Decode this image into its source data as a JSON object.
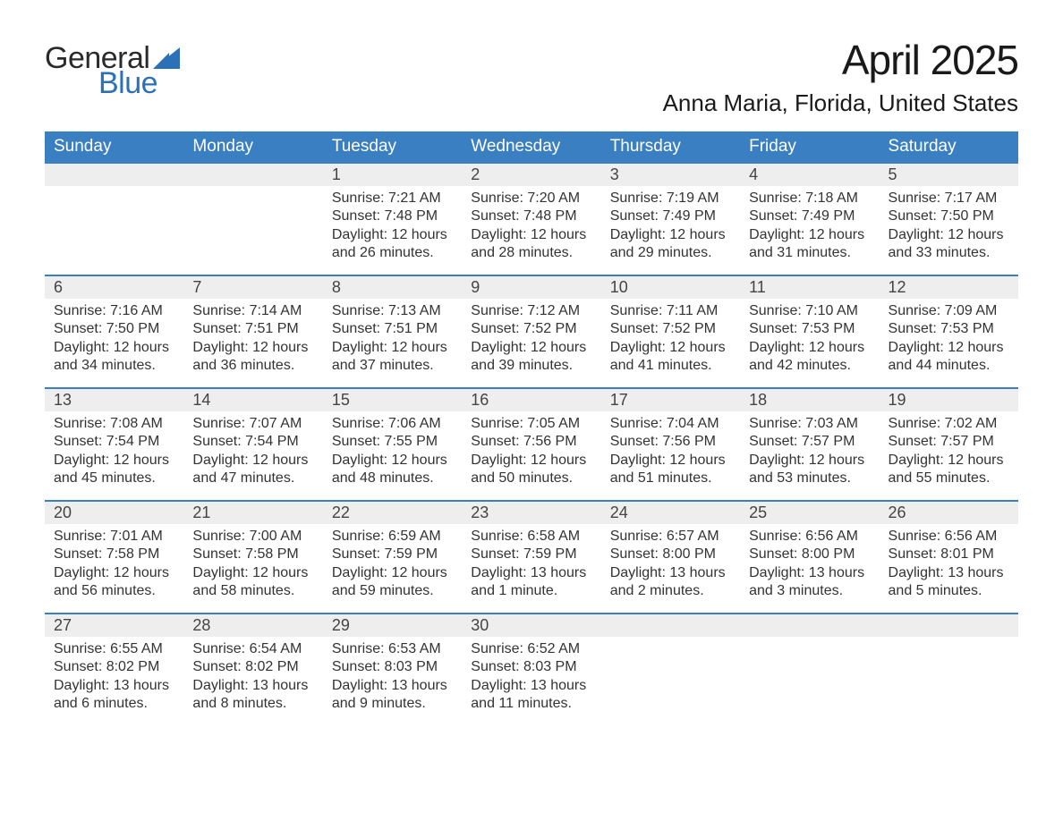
{
  "logo": {
    "text1": "General",
    "text2": "Blue",
    "color_general": "#2a2a2a",
    "color_blue": "#2c71b8",
    "sail_color": "#2c71b8"
  },
  "title": "April 2025",
  "location": "Anna Maria, Florida, United States",
  "colors": {
    "header_bg": "#3a7fc2",
    "header_text": "#ffffff",
    "daynum_bg": "#eeeeee",
    "row_border": "#3a7fc2",
    "body_text": "#333333",
    "page_bg": "#ffffff"
  },
  "fonts": {
    "title_size_pt": 34,
    "location_size_pt": 20,
    "dow_size_pt": 14,
    "daynum_size_pt": 13,
    "body_size_pt": 12
  },
  "days_of_week": [
    "Sunday",
    "Monday",
    "Tuesday",
    "Wednesday",
    "Thursday",
    "Friday",
    "Saturday"
  ],
  "weeks": [
    [
      null,
      null,
      {
        "n": "1",
        "sunrise": "7:21 AM",
        "sunset": "7:48 PM",
        "daylight": "12 hours and 26 minutes."
      },
      {
        "n": "2",
        "sunrise": "7:20 AM",
        "sunset": "7:48 PM",
        "daylight": "12 hours and 28 minutes."
      },
      {
        "n": "3",
        "sunrise": "7:19 AM",
        "sunset": "7:49 PM",
        "daylight": "12 hours and 29 minutes."
      },
      {
        "n": "4",
        "sunrise": "7:18 AM",
        "sunset": "7:49 PM",
        "daylight": "12 hours and 31 minutes."
      },
      {
        "n": "5",
        "sunrise": "7:17 AM",
        "sunset": "7:50 PM",
        "daylight": "12 hours and 33 minutes."
      }
    ],
    [
      {
        "n": "6",
        "sunrise": "7:16 AM",
        "sunset": "7:50 PM",
        "daylight": "12 hours and 34 minutes."
      },
      {
        "n": "7",
        "sunrise": "7:14 AM",
        "sunset": "7:51 PM",
        "daylight": "12 hours and 36 minutes."
      },
      {
        "n": "8",
        "sunrise": "7:13 AM",
        "sunset": "7:51 PM",
        "daylight": "12 hours and 37 minutes."
      },
      {
        "n": "9",
        "sunrise": "7:12 AM",
        "sunset": "7:52 PM",
        "daylight": "12 hours and 39 minutes."
      },
      {
        "n": "10",
        "sunrise": "7:11 AM",
        "sunset": "7:52 PM",
        "daylight": "12 hours and 41 minutes."
      },
      {
        "n": "11",
        "sunrise": "7:10 AM",
        "sunset": "7:53 PM",
        "daylight": "12 hours and 42 minutes."
      },
      {
        "n": "12",
        "sunrise": "7:09 AM",
        "sunset": "7:53 PM",
        "daylight": "12 hours and 44 minutes."
      }
    ],
    [
      {
        "n": "13",
        "sunrise": "7:08 AM",
        "sunset": "7:54 PM",
        "daylight": "12 hours and 45 minutes."
      },
      {
        "n": "14",
        "sunrise": "7:07 AM",
        "sunset": "7:54 PM",
        "daylight": "12 hours and 47 minutes."
      },
      {
        "n": "15",
        "sunrise": "7:06 AM",
        "sunset": "7:55 PM",
        "daylight": "12 hours and 48 minutes."
      },
      {
        "n": "16",
        "sunrise": "7:05 AM",
        "sunset": "7:56 PM",
        "daylight": "12 hours and 50 minutes."
      },
      {
        "n": "17",
        "sunrise": "7:04 AM",
        "sunset": "7:56 PM",
        "daylight": "12 hours and 51 minutes."
      },
      {
        "n": "18",
        "sunrise": "7:03 AM",
        "sunset": "7:57 PM",
        "daylight": "12 hours and 53 minutes."
      },
      {
        "n": "19",
        "sunrise": "7:02 AM",
        "sunset": "7:57 PM",
        "daylight": "12 hours and 55 minutes."
      }
    ],
    [
      {
        "n": "20",
        "sunrise": "7:01 AM",
        "sunset": "7:58 PM",
        "daylight": "12 hours and 56 minutes."
      },
      {
        "n": "21",
        "sunrise": "7:00 AM",
        "sunset": "7:58 PM",
        "daylight": "12 hours and 58 minutes."
      },
      {
        "n": "22",
        "sunrise": "6:59 AM",
        "sunset": "7:59 PM",
        "daylight": "12 hours and 59 minutes."
      },
      {
        "n": "23",
        "sunrise": "6:58 AM",
        "sunset": "7:59 PM",
        "daylight": "13 hours and 1 minute."
      },
      {
        "n": "24",
        "sunrise": "6:57 AM",
        "sunset": "8:00 PM",
        "daylight": "13 hours and 2 minutes."
      },
      {
        "n": "25",
        "sunrise": "6:56 AM",
        "sunset": "8:00 PM",
        "daylight": "13 hours and 3 minutes."
      },
      {
        "n": "26",
        "sunrise": "6:56 AM",
        "sunset": "8:01 PM",
        "daylight": "13 hours and 5 minutes."
      }
    ],
    [
      {
        "n": "27",
        "sunrise": "6:55 AM",
        "sunset": "8:02 PM",
        "daylight": "13 hours and 6 minutes."
      },
      {
        "n": "28",
        "sunrise": "6:54 AM",
        "sunset": "8:02 PM",
        "daylight": "13 hours and 8 minutes."
      },
      {
        "n": "29",
        "sunrise": "6:53 AM",
        "sunset": "8:03 PM",
        "daylight": "13 hours and 9 minutes."
      },
      {
        "n": "30",
        "sunrise": "6:52 AM",
        "sunset": "8:03 PM",
        "daylight": "13 hours and 11 minutes."
      },
      null,
      null,
      null
    ]
  ],
  "labels": {
    "sunrise": "Sunrise: ",
    "sunset": "Sunset: ",
    "daylight": "Daylight: "
  }
}
